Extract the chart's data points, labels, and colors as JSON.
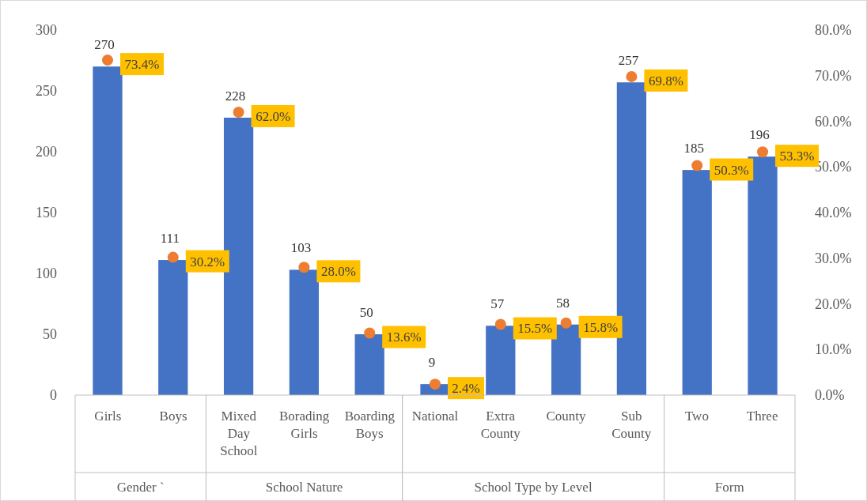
{
  "chart_data": {
    "type": "bar",
    "categories": [
      "Girls",
      "Boys",
      "Mixed Day School",
      "Borading Girls",
      "Boarding Boys",
      "National",
      "Extra County",
      "County",
      "Sub County",
      "Two",
      "Three"
    ],
    "series": [
      {
        "type": "bar",
        "color": "#4472c4",
        "values": [
          270,
          111,
          228,
          103,
          50,
          9,
          57,
          58,
          257,
          185,
          196
        ],
        "value_labels": [
          "270",
          "111",
          "228",
          "103",
          "50",
          "9",
          "57",
          "58",
          "257",
          "185",
          "196"
        ]
      },
      {
        "type": "scatter",
        "axis": "y2",
        "color": "#ed7d31",
        "marker": "circle",
        "values": [
          73.4,
          30.2,
          62.0,
          28.0,
          13.6,
          2.4,
          15.5,
          15.8,
          69.8,
          50.3,
          53.3
        ],
        "value_labels": [
          "73.4%",
          "30.2%",
          "62.0%",
          "28.0%",
          "13.6%",
          "2.4%",
          "15.5%",
          "15.8%",
          "69.8%",
          "50.3%",
          "53.3%"
        ]
      }
    ],
    "ylim": [
      0,
      300
    ],
    "yticks": [
      0,
      50,
      100,
      150,
      200,
      250,
      300
    ],
    "y2lim": [
      0,
      80
    ],
    "y2ticks": [
      {
        "value": 0,
        "label": "0.0%"
      },
      {
        "value": 10,
        "label": "10.0%"
      },
      {
        "value": 20,
        "label": "20.0%"
      },
      {
        "value": 30,
        "label": "30.0%"
      },
      {
        "value": 40,
        "label": "40.0%"
      },
      {
        "value": 50,
        "label": "50.0%"
      },
      {
        "value": 60,
        "label": "60.0%"
      },
      {
        "value": 70,
        "label": "70.0%"
      },
      {
        "value": 80,
        "label": "80.0%"
      }
    ],
    "annotations": [
      "Gender `",
      "School Nature",
      "School Type by Level",
      "Form"
    ],
    "grid": false
  }
}
